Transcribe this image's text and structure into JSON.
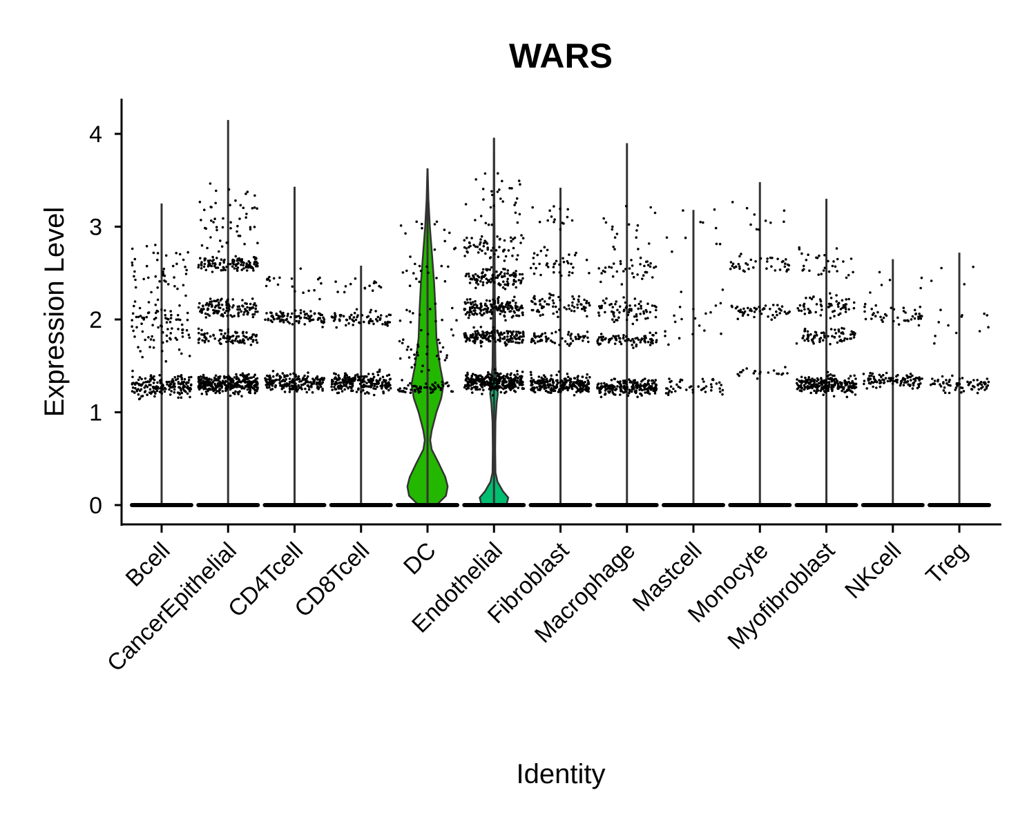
{
  "chart_data": {
    "type": "violin",
    "title": "WARS",
    "xlabel": "Identity",
    "ylabel": "Expression Level",
    "ylim": [
      -0.2,
      4.4
    ],
    "yticks": [
      0,
      1,
      2,
      3,
      4
    ],
    "grid": false,
    "legend": "none",
    "categories": [
      "Bcell",
      "CancerEpithelial",
      "CD4Tcell",
      "CD8Tcell",
      "DC",
      "Endothelial",
      "Fibroblast",
      "Macrophage",
      "Mastcell",
      "Monocyte",
      "Myofibroblast",
      "NKcell",
      "Treg"
    ],
    "series": [
      {
        "category": "Bcell",
        "max": 3.25,
        "fill": "#F8766D",
        "density": [],
        "points": {
          "zero_count": 60,
          "clusters": [
            {
              "center": 1.28,
              "spread": 0.12,
              "count": 180
            },
            {
              "center": 1.95,
              "spread": 0.3,
              "count": 90
            },
            {
              "center": 2.55,
              "spread": 0.25,
              "count": 40
            }
          ]
        }
      },
      {
        "category": "CancerEpithelial",
        "max": 4.15,
        "fill": "#E18A00",
        "density": [],
        "points": {
          "zero_count": 60,
          "clusters": [
            {
              "center": 1.3,
              "spread": 0.1,
              "count": 320
            },
            {
              "center": 1.8,
              "spread": 0.08,
              "count": 90
            },
            {
              "center": 2.12,
              "spread": 0.1,
              "count": 120
            },
            {
              "center": 2.6,
              "spread": 0.08,
              "count": 110
            },
            {
              "center": 3.1,
              "spread": 0.3,
              "count": 50
            }
          ]
        }
      },
      {
        "category": "CD4Tcell",
        "max": 3.43,
        "fill": "#BE9C00",
        "density": [],
        "points": {
          "zero_count": 60,
          "clusters": [
            {
              "center": 1.32,
              "spread": 0.1,
              "count": 200
            },
            {
              "center": 2.02,
              "spread": 0.08,
              "count": 90
            },
            {
              "center": 2.4,
              "spread": 0.15,
              "count": 20
            }
          ]
        }
      },
      {
        "category": "CD8Tcell",
        "max": 2.58,
        "fill": "#8CAB00",
        "density": [],
        "points": {
          "zero_count": 60,
          "clusters": [
            {
              "center": 1.32,
              "spread": 0.1,
              "count": 220
            },
            {
              "center": 2.0,
              "spread": 0.1,
              "count": 70
            },
            {
              "center": 2.35,
              "spread": 0.08,
              "count": 15
            }
          ]
        }
      },
      {
        "category": "DC",
        "max": 3.62,
        "fill": "#24B700",
        "density": [
          [
            0,
            0.3
          ],
          [
            0.1,
            0.62
          ],
          [
            0.2,
            0.68
          ],
          [
            0.3,
            0.6
          ],
          [
            0.45,
            0.38
          ],
          [
            0.6,
            0.14
          ],
          [
            0.7,
            0.09
          ],
          [
            0.8,
            0.14
          ],
          [
            1.0,
            0.3
          ],
          [
            1.15,
            0.46
          ],
          [
            1.3,
            0.54
          ],
          [
            1.5,
            0.42
          ],
          [
            1.8,
            0.3
          ],
          [
            2.1,
            0.27
          ],
          [
            2.4,
            0.22
          ],
          [
            2.7,
            0.15
          ],
          [
            3.0,
            0.08
          ],
          [
            3.3,
            0.03
          ],
          [
            3.62,
            0.005
          ]
        ],
        "points": {
          "zero_count": 40,
          "clusters": [
            {
              "center": 1.27,
              "spread": 0.06,
              "count": 60
            },
            {
              "center": 1.8,
              "spread": 0.4,
              "count": 45
            },
            {
              "center": 2.7,
              "spread": 0.5,
              "count": 30
            }
          ]
        }
      },
      {
        "category": "Endothelial",
        "max": 3.95,
        "fill": "#00BE70",
        "density": [
          [
            0,
            0.42
          ],
          [
            0.08,
            0.48
          ],
          [
            0.15,
            0.3
          ],
          [
            0.25,
            0.12
          ],
          [
            0.35,
            0.05
          ],
          [
            0.6,
            0.04
          ],
          [
            0.9,
            0.05
          ],
          [
            1.1,
            0.09
          ],
          [
            1.2,
            0.13
          ],
          [
            1.3,
            0.1
          ],
          [
            1.5,
            0.05
          ],
          [
            1.8,
            0.04
          ],
          [
            2.2,
            0.03
          ],
          [
            2.8,
            0.02
          ],
          [
            3.4,
            0.01
          ],
          [
            3.95,
            0.004
          ]
        ],
        "points": {
          "zero_count": 60,
          "clusters": [
            {
              "center": 1.32,
              "spread": 0.1,
              "count": 320
            },
            {
              "center": 1.82,
              "spread": 0.08,
              "count": 150
            },
            {
              "center": 2.12,
              "spread": 0.1,
              "count": 160
            },
            {
              "center": 2.45,
              "spread": 0.12,
              "count": 110
            },
            {
              "center": 2.8,
              "spread": 0.15,
              "count": 60
            },
            {
              "center": 3.3,
              "spread": 0.3,
              "count": 30
            }
          ]
        }
      },
      {
        "category": "Fibroblast",
        "max": 3.42,
        "fill": "#00C1AB",
        "density": [],
        "points": {
          "zero_count": 60,
          "clusters": [
            {
              "center": 1.3,
              "spread": 0.1,
              "count": 250
            },
            {
              "center": 1.8,
              "spread": 0.08,
              "count": 60
            },
            {
              "center": 2.15,
              "spread": 0.12,
              "count": 70
            },
            {
              "center": 2.6,
              "spread": 0.2,
              "count": 40
            },
            {
              "center": 3.05,
              "spread": 0.2,
              "count": 15
            }
          ]
        }
      },
      {
        "category": "Macrophage",
        "max": 3.9,
        "fill": "#00BBDA",
        "density": [],
        "points": {
          "zero_count": 60,
          "clusters": [
            {
              "center": 1.27,
              "spread": 0.08,
              "count": 200
            },
            {
              "center": 1.78,
              "spread": 0.06,
              "count": 80
            },
            {
              "center": 2.1,
              "spread": 0.12,
              "count": 70
            },
            {
              "center": 2.55,
              "spread": 0.2,
              "count": 40
            },
            {
              "center": 3.05,
              "spread": 0.25,
              "count": 15
            }
          ]
        }
      },
      {
        "category": "Mastcell",
        "max": 3.18,
        "fill": "#00ACFC",
        "density": [],
        "points": {
          "zero_count": 60,
          "clusters": [
            {
              "center": 1.28,
              "spread": 0.1,
              "count": 45
            },
            {
              "center": 2.0,
              "spread": 0.3,
              "count": 20
            },
            {
              "center": 2.9,
              "spread": 0.25,
              "count": 10
            }
          ]
        }
      },
      {
        "category": "Monocyte",
        "max": 3.48,
        "fill": "#8B93FF",
        "density": [],
        "points": {
          "zero_count": 60,
          "clusters": [
            {
              "center": 1.42,
              "spread": 0.06,
              "count": 20
            },
            {
              "center": 2.1,
              "spread": 0.08,
              "count": 50
            },
            {
              "center": 2.6,
              "spread": 0.1,
              "count": 40
            },
            {
              "center": 3.1,
              "spread": 0.2,
              "count": 10
            }
          ]
        }
      },
      {
        "category": "Myofibroblast",
        "max": 3.3,
        "fill": "#D575FE",
        "density": [],
        "points": {
          "zero_count": 60,
          "clusters": [
            {
              "center": 1.3,
              "spread": 0.1,
              "count": 240
            },
            {
              "center": 1.82,
              "spread": 0.08,
              "count": 70
            },
            {
              "center": 2.15,
              "spread": 0.12,
              "count": 60
            },
            {
              "center": 2.6,
              "spread": 0.2,
              "count": 30
            }
          ]
        }
      },
      {
        "category": "NKcell",
        "max": 2.65,
        "fill": "#F962DD",
        "density": [],
        "points": {
          "zero_count": 60,
          "clusters": [
            {
              "center": 1.35,
              "spread": 0.08,
              "count": 100
            },
            {
              "center": 2.05,
              "spread": 0.1,
              "count": 45
            },
            {
              "center": 2.4,
              "spread": 0.15,
              "count": 6
            }
          ]
        }
      },
      {
        "category": "Treg",
        "max": 2.72,
        "fill": "#FF65AC",
        "density": [],
        "points": {
          "zero_count": 60,
          "clusters": [
            {
              "center": 1.3,
              "spread": 0.08,
              "count": 70
            },
            {
              "center": 2.0,
              "spread": 0.3,
              "count": 12
            },
            {
              "center": 2.5,
              "spread": 0.2,
              "count": 4
            }
          ]
        }
      }
    ]
  }
}
